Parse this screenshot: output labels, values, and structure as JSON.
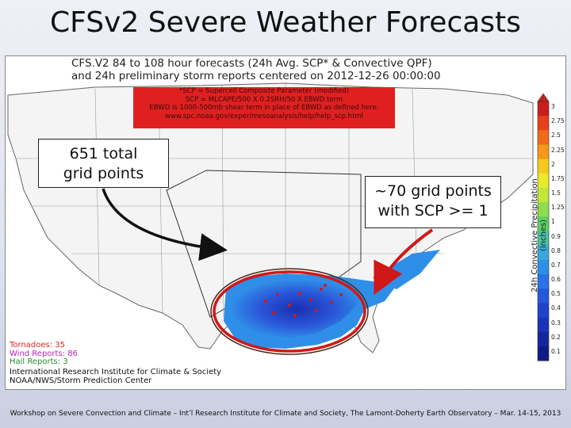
{
  "slide": {
    "title": "CFSv2 Severe Weather Forecasts",
    "footer": "Workshop on Severe Convection and Climate – Int’l Research Institute for Climate and Society, The Lamont-Doherty Earth Observatory – Mar. 14-15, 2013"
  },
  "figure": {
    "title_line1": "CFS.V2 84 to 108 hour forecasts (24h Avg. SCP* & Convective QPF)",
    "title_line2": "and 24h preliminary storm reports centered on 2012-12-26 00:00:00",
    "scp_definition": [
      "*SCP = Supercell Composite Parameter (modified)",
      "SCP = MLCAPE/500 X 0.2SRH/50 X EBWD term",
      "EBWD is 1000-500mb shear term in place of EBWD as defined here:",
      "www.spc.noaa.gov/exper/mesoanalysis/help/help_scp.html"
    ],
    "colorbar": {
      "label": "24h Convective Precipitation (inches)",
      "ticks": [
        "3",
        "2.75",
        "2.5",
        "2.25",
        "2",
        "1.75",
        "1.5",
        "1.25",
        "1",
        "0.9",
        "0.8",
        "0.7",
        "0.6",
        "0.5",
        "0.4",
        "0.3",
        "0.2",
        "0.1"
      ],
      "colors": [
        "#c81e1e",
        "#e8401c",
        "#f06a1a",
        "#f59a18",
        "#f7c91c",
        "#e9ea2a",
        "#c2e63a",
        "#8fdc4e",
        "#5fcf62",
        "#44c2a0",
        "#3aa9da",
        "#2f8fe8",
        "#2a72e6",
        "#2458dc",
        "#1e44cc",
        "#1a34b6",
        "#15279e",
        "#0f1b84"
      ]
    },
    "storm_reports": {
      "tornadoes": "Tornadoes: 35",
      "wind": "Wind Reports: 86",
      "hail": "Hail Reports: 3",
      "colors": {
        "tornadoes": "#e02424",
        "wind": "#c020c0",
        "hail": "#2a8a2a"
      }
    },
    "credit_line1": "International Research Institute for Climate & Society",
    "credit_line2": "NOAA/NWS/Storm Prediction Center"
  },
  "annotations": {
    "callout_total": [
      "651 total",
      "grid points"
    ],
    "callout_scp": [
      "~70 grid points",
      "with SCP >= 1"
    ]
  }
}
